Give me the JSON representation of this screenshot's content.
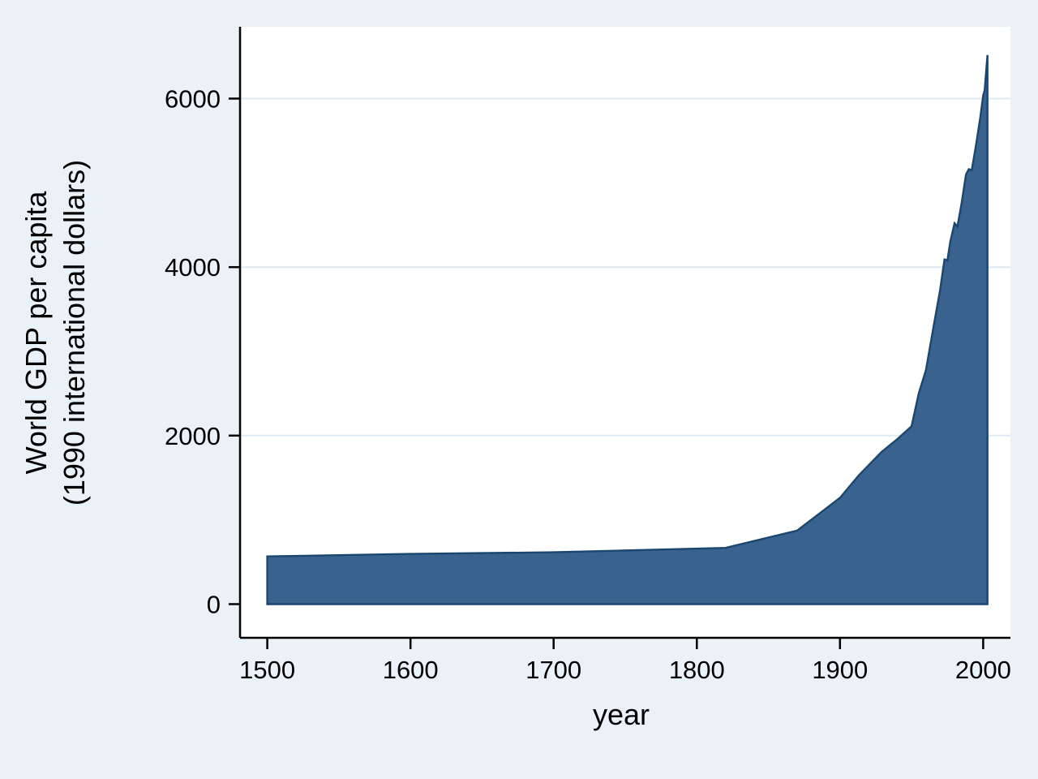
{
  "figure": {
    "background_color": "#eaf1f7",
    "plot_background_color": "#ffffff",
    "axis_color": "#000000",
    "gridline_color": "#dfe9f3"
  },
  "chart_data": {
    "type": "area",
    "title": "",
    "xlabel": "year",
    "ylabel": "World GDP per capita (1990 international dollars)",
    "ylabel_line1": "World GDP per capita",
    "ylabel_line2": "(1990 international dollars)",
    "legend": "none",
    "grid": true,
    "xlim": [
      1500,
      2003
    ],
    "ylim": [
      0,
      6516
    ],
    "x_ticks": [
      "1500",
      "1600",
      "1700",
      "1800",
      "1900",
      "2000"
    ],
    "y_ticks": [
      "0",
      "2000",
      "4000",
      "6000"
    ],
    "area_fill_color": "#3a628e",
    "area_line_color": "#1a476f",
    "series": [
      {
        "name": "World GDP per capita (1990 international dollars)",
        "x": [
          1500,
          1600,
          1700,
          1820,
          1870,
          1900,
          1913,
          1929,
          1940,
          1950,
          1955,
          1960,
          1965,
          1970,
          1973,
          1975,
          1977,
          1980,
          1982,
          1985,
          1988,
          1990,
          1992,
          1995,
          1998,
          2000,
          2001,
          2003
        ],
        "y": [
          566,
          596,
          615,
          667,
          873,
          1262,
          1526,
          1806,
          1958,
          2111,
          2500,
          2777,
          3260,
          3736,
          4091,
          4080,
          4300,
          4521,
          4480,
          4764,
          5100,
          5162,
          5150,
          5450,
          5780,
          6038,
          6100,
          6516
        ]
      }
    ]
  }
}
